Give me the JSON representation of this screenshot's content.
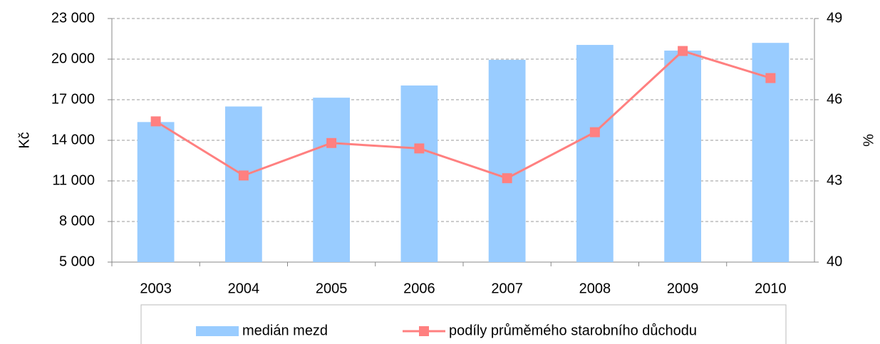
{
  "chart_data": {
    "type": "bar-line",
    "categories": [
      "2003",
      "2004",
      "2005",
      "2006",
      "2007",
      "2008",
      "2009",
      "2010"
    ],
    "series": [
      {
        "name": "medián mezd",
        "type": "bar",
        "color": "#99ccff",
        "axis": "y",
        "values": [
          15350,
          16500,
          17150,
          18050,
          19950,
          21050,
          20630,
          21200
        ]
      },
      {
        "name": "podíly průměmého starobního důchodu",
        "type": "line",
        "color": "#ff8080",
        "axis": "y2",
        "values": [
          45.2,
          43.2,
          44.4,
          44.2,
          43.1,
          44.8,
          47.8,
          46.8
        ]
      }
    ],
    "y_label": "Kč",
    "y2_label": "%",
    "ylim": [
      5000,
      23000
    ],
    "yticks": [
      {
        "value": 5000,
        "label": "5 000"
      },
      {
        "value": 8000,
        "label": "8 000"
      },
      {
        "value": 11000,
        "label": "11 000"
      },
      {
        "value": 14000,
        "label": "14 000"
      },
      {
        "value": 17000,
        "label": "17 000"
      },
      {
        "value": 20000,
        "label": "20 000"
      },
      {
        "value": 23000,
        "label": "23 000"
      }
    ],
    "y2lim": [
      40,
      49
    ],
    "y2ticks": [
      40,
      43,
      46,
      49
    ],
    "grid": true,
    "legend": "bottom"
  }
}
